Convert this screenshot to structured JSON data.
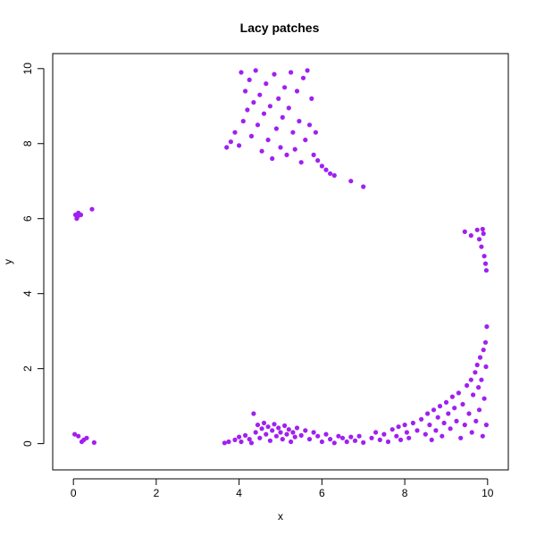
{
  "chart_data": {
    "type": "scatter",
    "title": "Lacy patches",
    "xlabel": "x",
    "ylabel": "y",
    "xlim": [
      -0.5,
      10.5
    ],
    "ylim": [
      -0.7,
      10.4
    ],
    "xticks": [
      0,
      2,
      4,
      6,
      8,
      10
    ],
    "yticks": [
      0,
      2,
      4,
      6,
      8,
      10
    ],
    "grid": false,
    "legend": "none",
    "point_color": "#a020f0",
    "series": [
      {
        "points": [
          [
            0.03,
            0.25
          ],
          [
            0.12,
            0.2
          ],
          [
            0.2,
            0.05
          ],
          [
            0.25,
            0.1
          ],
          [
            0.32,
            0.15
          ],
          [
            0.5,
            0.03
          ],
          [
            0.05,
            6.1
          ],
          [
            0.1,
            6.05
          ],
          [
            0.12,
            6.15
          ],
          [
            0.18,
            6.1
          ],
          [
            0.08,
            6.0
          ],
          [
            0.45,
            6.25
          ],
          [
            3.65,
            0.02
          ],
          [
            3.75,
            0.05
          ],
          [
            3.9,
            0.1
          ],
          [
            4.0,
            0.18
          ],
          [
            4.05,
            0.05
          ],
          [
            4.15,
            0.22
          ],
          [
            4.25,
            0.12
          ],
          [
            4.3,
            0.02
          ],
          [
            4.35,
            0.8
          ],
          [
            4.4,
            0.3
          ],
          [
            4.45,
            0.5
          ],
          [
            4.5,
            0.15
          ],
          [
            4.55,
            0.4
          ],
          [
            4.6,
            0.55
          ],
          [
            4.65,
            0.25
          ],
          [
            4.7,
            0.45
          ],
          [
            4.75,
            0.08
          ],
          [
            4.8,
            0.35
          ],
          [
            4.85,
            0.52
          ],
          [
            4.9,
            0.2
          ],
          [
            4.95,
            0.42
          ],
          [
            5.0,
            0.3
          ],
          [
            5.05,
            0.12
          ],
          [
            5.1,
            0.48
          ],
          [
            5.15,
            0.25
          ],
          [
            5.2,
            0.38
          ],
          [
            5.25,
            0.05
          ],
          [
            5.3,
            0.3
          ],
          [
            5.35,
            0.18
          ],
          [
            5.4,
            0.42
          ],
          [
            5.5,
            0.22
          ],
          [
            5.6,
            0.35
          ],
          [
            5.7,
            0.12
          ],
          [
            5.8,
            0.3
          ],
          [
            5.9,
            0.2
          ],
          [
            6.0,
            0.05
          ],
          [
            6.1,
            0.25
          ],
          [
            6.2,
            0.12
          ],
          [
            6.3,
            0.02
          ],
          [
            6.4,
            0.2
          ],
          [
            6.5,
            0.15
          ],
          [
            6.6,
            0.05
          ],
          [
            6.7,
            0.18
          ],
          [
            6.8,
            0.08
          ],
          [
            6.9,
            0.2
          ],
          [
            7.0,
            0.03
          ],
          [
            7.2,
            0.15
          ],
          [
            7.3,
            0.3
          ],
          [
            7.4,
            0.1
          ],
          [
            7.5,
            0.25
          ],
          [
            7.6,
            0.05
          ],
          [
            7.7,
            0.38
          ],
          [
            7.8,
            0.2
          ],
          [
            7.85,
            0.45
          ],
          [
            7.9,
            0.1
          ],
          [
            8.0,
            0.5
          ],
          [
            8.05,
            0.3
          ],
          [
            8.1,
            0.15
          ],
          [
            8.2,
            0.55
          ],
          [
            8.3,
            0.35
          ],
          [
            8.4,
            0.65
          ],
          [
            8.5,
            0.25
          ],
          [
            8.55,
            0.8
          ],
          [
            8.6,
            0.5
          ],
          [
            8.65,
            0.1
          ],
          [
            8.7,
            0.9
          ],
          [
            8.75,
            0.35
          ],
          [
            8.8,
            0.7
          ],
          [
            8.85,
            1.0
          ],
          [
            8.9,
            0.2
          ],
          [
            8.95,
            0.55
          ],
          [
            9.0,
            1.1
          ],
          [
            9.05,
            0.8
          ],
          [
            9.1,
            0.4
          ],
          [
            9.15,
            1.25
          ],
          [
            9.2,
            0.95
          ],
          [
            9.25,
            0.6
          ],
          [
            9.3,
            1.35
          ],
          [
            9.35,
            0.15
          ],
          [
            9.4,
            1.05
          ],
          [
            9.45,
            0.5
          ],
          [
            9.5,
            1.55
          ],
          [
            9.55,
            0.8
          ],
          [
            9.6,
            1.7
          ],
          [
            9.62,
            0.3
          ],
          [
            9.65,
            1.3
          ],
          [
            9.7,
            1.9
          ],
          [
            9.72,
            0.6
          ],
          [
            9.75,
            2.1
          ],
          [
            9.78,
            1.5
          ],
          [
            9.8,
            0.9
          ],
          [
            9.82,
            2.3
          ],
          [
            9.85,
            1.7
          ],
          [
            9.88,
            0.2
          ],
          [
            9.9,
            2.5
          ],
          [
            9.92,
            1.2
          ],
          [
            9.95,
            2.7
          ],
          [
            9.97,
            0.5
          ],
          [
            9.98,
            3.12
          ],
          [
            9.96,
            2.05
          ],
          [
            9.45,
            5.65
          ],
          [
            9.6,
            5.55
          ],
          [
            9.75,
            5.7
          ],
          [
            9.8,
            5.45
          ],
          [
            9.85,
            5.25
          ],
          [
            9.9,
            5.6
          ],
          [
            9.92,
            5.0
          ],
          [
            9.95,
            4.8
          ],
          [
            9.97,
            4.62
          ],
          [
            9.88,
            5.72
          ],
          [
            3.7,
            7.9
          ],
          [
            3.8,
            8.05
          ],
          [
            3.9,
            8.3
          ],
          [
            4.0,
            7.95
          ],
          [
            4.05,
            9.9
          ],
          [
            4.1,
            8.6
          ],
          [
            4.15,
            9.4
          ],
          [
            4.2,
            8.9
          ],
          [
            4.25,
            9.7
          ],
          [
            4.3,
            8.2
          ],
          [
            4.35,
            9.1
          ],
          [
            4.4,
            9.95
          ],
          [
            4.45,
            8.5
          ],
          [
            4.5,
            9.3
          ],
          [
            4.55,
            7.8
          ],
          [
            4.6,
            8.8
          ],
          [
            4.65,
            9.6
          ],
          [
            4.7,
            8.1
          ],
          [
            4.75,
            9.0
          ],
          [
            4.8,
            7.6
          ],
          [
            4.85,
            9.85
          ],
          [
            4.9,
            8.4
          ],
          [
            4.95,
            9.2
          ],
          [
            5.0,
            7.9
          ],
          [
            5.05,
            8.7
          ],
          [
            5.1,
            9.5
          ],
          [
            5.15,
            7.7
          ],
          [
            5.2,
            8.95
          ],
          [
            5.25,
            9.9
          ],
          [
            5.3,
            8.3
          ],
          [
            5.35,
            7.85
          ],
          [
            5.4,
            9.4
          ],
          [
            5.45,
            8.6
          ],
          [
            5.5,
            7.5
          ],
          [
            5.55,
            9.75
          ],
          [
            5.6,
            8.1
          ],
          [
            5.65,
            9.95
          ],
          [
            5.7,
            8.5
          ],
          [
            5.75,
            9.2
          ],
          [
            5.8,
            7.7
          ],
          [
            5.85,
            8.3
          ],
          [
            5.9,
            7.55
          ],
          [
            6.0,
            7.4
          ],
          [
            6.1,
            7.3
          ],
          [
            6.2,
            7.2
          ],
          [
            6.3,
            7.15
          ],
          [
            6.7,
            7.0
          ],
          [
            7.0,
            6.85
          ]
        ]
      }
    ]
  }
}
